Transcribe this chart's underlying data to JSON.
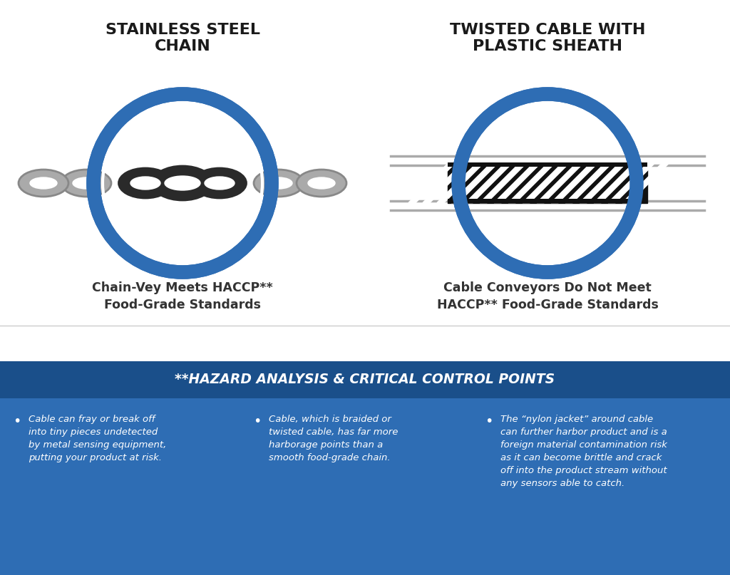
{
  "bg_color": "#ffffff",
  "blue_color": "#2e6db4",
  "dark_blue": "#1a4f8a",
  "gray_color": "#aaaaaa",
  "dark_gray": "#333333",
  "black_color": "#1a1a1a",
  "left_title": "STAINLESS STEEL\nCHAIN",
  "right_title": "TWISTED CABLE WITH\nPLASTIC SHEATH",
  "left_subtitle": "Chain-Vey Meets HACCP**\nFood-Grade Standards",
  "right_subtitle": "Cable Conveyors Do Not Meet\nHACCP** Food-Grade Standards",
  "haccp_title": "**HAZARD ANALYSIS & CRITICAL CONTROL POINTS",
  "bullet1": "Cable can fray or break off\ninto tiny pieces undetected\nby metal sensing equipment,\nputting your product at risk.",
  "bullet2": "Cable, which is braided or\ntwisted cable, has far more\nharborage points than a\nsmooth food-grade chain.",
  "bullet3": "The “nylon jacket” around cable\ncan further harbor product and is a\nforeign material contamination risk\nas it can become brittle and crack\noff into the product stream without\nany sensors able to catch."
}
